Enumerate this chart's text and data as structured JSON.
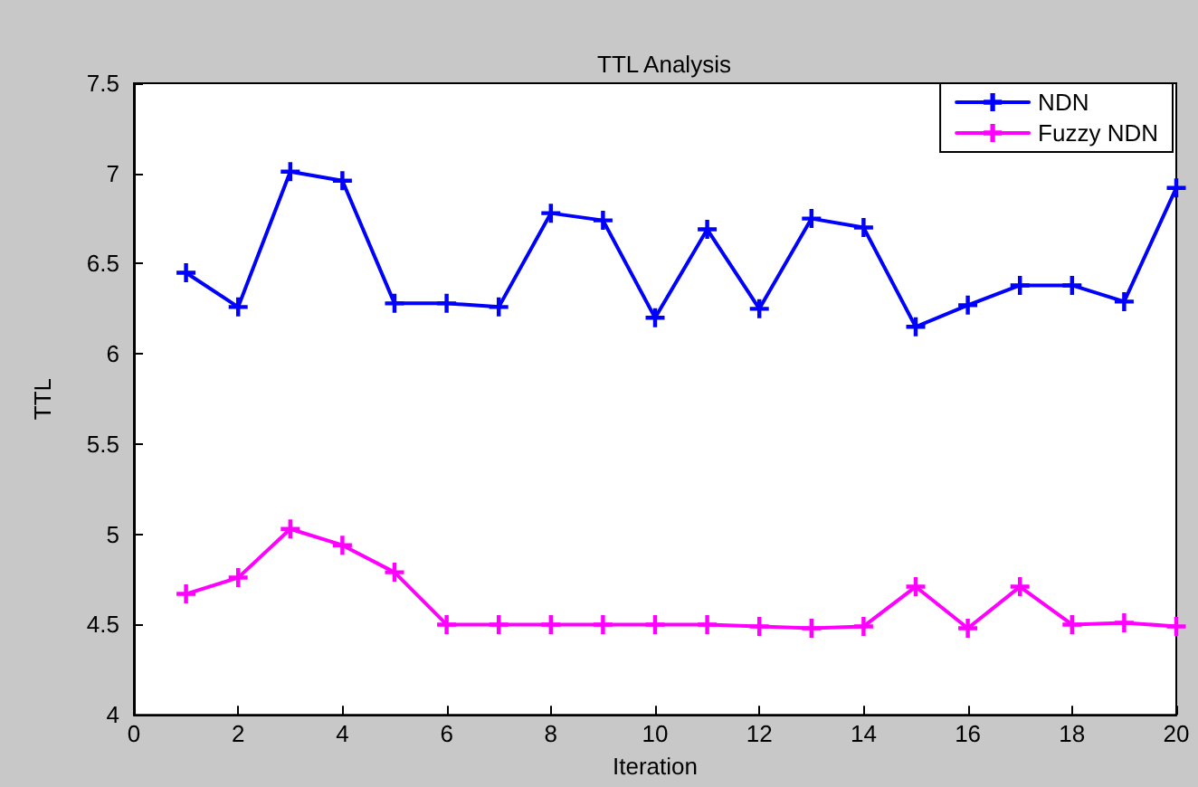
{
  "chart_data": {
    "type": "line",
    "title": "TTL Analysis",
    "xlabel": "Iteration",
    "ylabel": "TTL",
    "x": [
      1,
      2,
      3,
      4,
      5,
      6,
      7,
      8,
      9,
      10,
      11,
      12,
      13,
      14,
      15,
      16,
      17,
      18,
      19,
      20
    ],
    "series": [
      {
        "name": "NDN",
        "color": "#0000ff",
        "values": [
          6.45,
          6.26,
          7.01,
          6.96,
          6.28,
          6.28,
          6.26,
          6.78,
          6.74,
          6.2,
          6.69,
          6.25,
          6.75,
          6.7,
          6.15,
          6.27,
          6.38,
          6.38,
          6.29,
          6.92
        ]
      },
      {
        "name": "Fuzzy NDN",
        "color": "#ff00ff",
        "values": [
          4.67,
          4.76,
          5.03,
          4.94,
          4.79,
          4.5,
          4.5,
          4.5,
          4.5,
          4.5,
          4.5,
          4.49,
          4.48,
          4.49,
          4.71,
          4.48,
          4.71,
          4.5,
          4.51,
          4.49
        ]
      }
    ],
    "xlim": [
      0,
      20
    ],
    "xticks": [
      0,
      2,
      4,
      6,
      8,
      10,
      12,
      14,
      16,
      18,
      20
    ],
    "ylim": [
      4,
      7.5
    ],
    "yticks": [
      4,
      4.5,
      5,
      5.5,
      6,
      6.5,
      7,
      7.5
    ],
    "grid": false,
    "legend": "top right",
    "marker": "cross",
    "line_style": "solid"
  }
}
